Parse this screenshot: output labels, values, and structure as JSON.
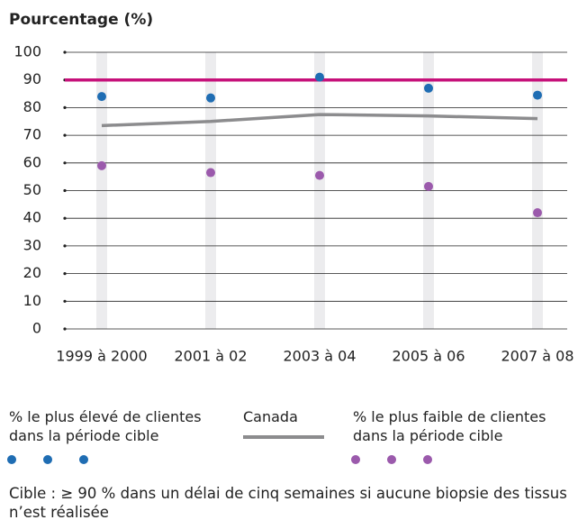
{
  "chart_data": {
    "type": "line",
    "y_label": "Pourcentage (%)",
    "categories": [
      "1999 à 2000",
      "2001 à 02",
      "2003 à 04",
      "2005 à 06",
      "2007 à 08"
    ],
    "series": [
      {
        "name": "% le plus élevé de clientes dans la période cible",
        "color": "#1f6db3",
        "mode": "markers",
        "values": [
          84,
          83.5,
          91,
          87,
          84.5
        ]
      },
      {
        "name": "Canada",
        "color": "#8c8c8e",
        "mode": "line",
        "values": [
          73.5,
          75,
          77.5,
          77,
          76
        ]
      },
      {
        "name": "% le plus faible de clientes dans la période cible",
        "color": "#9b5aac",
        "mode": "markers",
        "values": [
          59,
          56.5,
          55.5,
          51.5,
          42
        ]
      }
    ],
    "target": {
      "value": 90,
      "color": "#c6117a"
    },
    "ylim": [
      0,
      100
    ],
    "yticks": [
      0,
      10,
      20,
      30,
      40,
      50,
      60,
      70,
      80,
      90,
      100
    ],
    "grid": true,
    "note": "Cible : ≥ 90 % dans un délai de cinq semaines si aucune biopsie des tissus n’est réalisée"
  }
}
